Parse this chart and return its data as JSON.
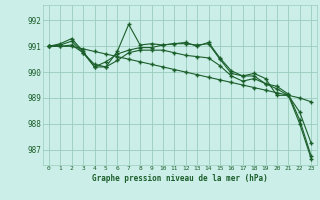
{
  "bg_color": "#cceee8",
  "grid_color": "#99ccbb",
  "line_color": "#1a5e2a",
  "title": "Graphe pression niveau de la mer (hPa)",
  "xlim": [
    -0.5,
    23.5
  ],
  "ylim": [
    986.4,
    992.6
  ],
  "yticks": [
    987,
    988,
    989,
    990,
    991,
    992
  ],
  "xticks": [
    0,
    1,
    2,
    3,
    4,
    5,
    6,
    7,
    8,
    9,
    10,
    11,
    12,
    13,
    14,
    15,
    16,
    17,
    18,
    19,
    20,
    21,
    22,
    23
  ],
  "series": [
    [
      991.0,
      991.1,
      991.3,
      990.8,
      990.2,
      990.2,
      990.8,
      991.85,
      991.05,
      991.1,
      991.05,
      991.1,
      991.15,
      991.0,
      991.15,
      990.55,
      990.05,
      989.85,
      989.95,
      989.75,
      989.1,
      989.1,
      988.0,
      986.65
    ],
    [
      991.0,
      991.0,
      991.0,
      990.9,
      990.8,
      990.7,
      990.6,
      990.5,
      990.4,
      990.3,
      990.2,
      990.1,
      990.0,
      989.9,
      989.8,
      989.7,
      989.6,
      989.5,
      989.4,
      989.3,
      989.2,
      989.1,
      989.0,
      988.85
    ],
    [
      991.0,
      991.05,
      991.2,
      990.75,
      990.2,
      990.4,
      990.7,
      990.85,
      990.95,
      990.95,
      991.05,
      991.1,
      991.1,
      991.05,
      991.1,
      990.5,
      989.95,
      989.85,
      989.85,
      989.55,
      989.45,
      989.15,
      988.15,
      986.75
    ],
    [
      991.0,
      991.0,
      991.05,
      990.75,
      990.3,
      990.2,
      990.45,
      990.75,
      990.85,
      990.85,
      990.85,
      990.75,
      990.65,
      990.6,
      990.55,
      990.25,
      989.85,
      989.65,
      989.75,
      989.55,
      989.35,
      989.1,
      988.45,
      987.25
    ]
  ]
}
